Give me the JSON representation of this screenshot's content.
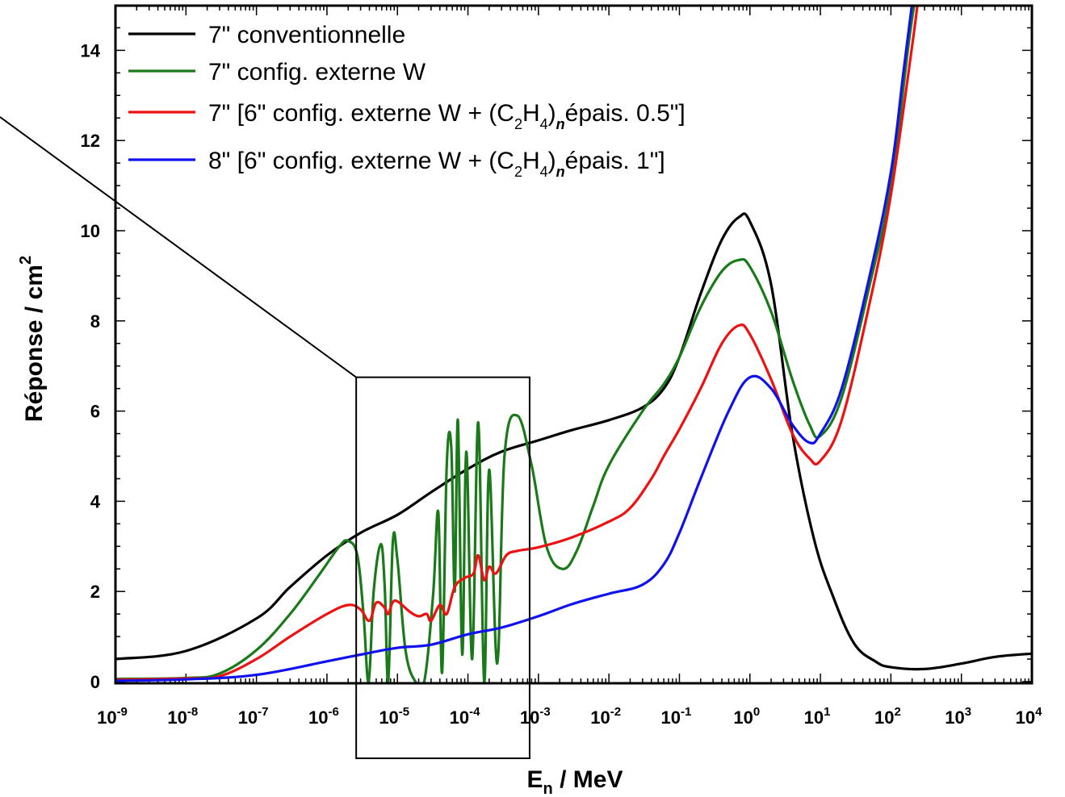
{
  "chart_data": {
    "type": "line",
    "xscale": "log",
    "xlim": [
      1e-09,
      10000.0
    ],
    "ylim": [
      0,
      15
    ],
    "xlabel_main": "E",
    "xlabel_sub": "n",
    "xlabel_rest": " / MeV",
    "ylabel_main": "Réponse / cm",
    "ylabel_sup": "2",
    "x_ticks": [
      {
        "base": "10",
        "exp": "-9",
        "value": 1e-09
      },
      {
        "base": "10",
        "exp": "-8",
        "value": 1e-08
      },
      {
        "base": "10",
        "exp": "-7",
        "value": 1e-07
      },
      {
        "base": "10",
        "exp": "-6",
        "value": 1e-06
      },
      {
        "base": "10",
        "exp": "-5",
        "value": 1e-05
      },
      {
        "base": "10",
        "exp": "-4",
        "value": 0.0001
      },
      {
        "base": "10",
        "exp": "-3",
        "value": 0.001
      },
      {
        "base": "10",
        "exp": "-2",
        "value": 0.01
      },
      {
        "base": "10",
        "exp": "-1",
        "value": 0.1
      },
      {
        "base": "10",
        "exp": "0",
        "value": 1
      },
      {
        "base": "10",
        "exp": "1",
        "value": 10
      },
      {
        "base": "10",
        "exp": "2",
        "value": 100
      },
      {
        "base": "10",
        "exp": "3",
        "value": 1000
      },
      {
        "base": "10",
        "exp": "4",
        "value": 10000
      }
    ],
    "y_ticks": [
      {
        "label": "0",
        "value": 0
      },
      {
        "label": "2",
        "value": 2
      },
      {
        "label": "4",
        "value": 4
      },
      {
        "label": "6",
        "value": 6
      },
      {
        "label": "8",
        "value": 8
      },
      {
        "label": "10",
        "value": 10
      },
      {
        "label": "12",
        "value": 12
      },
      {
        "label": "14",
        "value": 14
      }
    ],
    "legend_position": "top-left",
    "zoom_box": {
      "x_range": [
        2.6e-06,
        0.00075
      ],
      "y_range": [
        -1.7,
        6.75
      ]
    },
    "series": [
      {
        "legend_parts": [
          "7\" conventionnelle"
        ],
        "color": "#000000",
        "points": [
          [
            1e-09,
            0.5
          ],
          [
            1e-08,
            0.68
          ],
          [
            1e-07,
            1.4
          ],
          [
            3e-07,
            2.1
          ],
          [
            1e-06,
            2.8
          ],
          [
            3e-06,
            3.3
          ],
          [
            1e-05,
            3.7
          ],
          [
            3e-05,
            4.2
          ],
          [
            0.0001,
            4.72
          ],
          [
            0.0003,
            5.1
          ],
          [
            0.001,
            5.35
          ],
          [
            0.003,
            5.58
          ],
          [
            0.01,
            5.8
          ],
          [
            0.03,
            6.08
          ],
          [
            0.06,
            6.5
          ],
          [
            0.1,
            7.2
          ],
          [
            0.2,
            8.6
          ],
          [
            0.4,
            9.8
          ],
          [
            0.7,
            10.3
          ],
          [
            1,
            10.2
          ],
          [
            2,
            8.8
          ],
          [
            4,
            5.5
          ],
          [
            8,
            3.2
          ],
          [
            15,
            1.9
          ],
          [
            30,
            0.85
          ],
          [
            60,
            0.45
          ],
          [
            100,
            0.32
          ],
          [
            300,
            0.28
          ],
          [
            1000,
            0.4
          ],
          [
            3000,
            0.55
          ],
          [
            10000.0,
            0.62
          ]
        ]
      },
      {
        "legend_parts": [
          "7\" config. externe W"
        ],
        "color": "#1a7a1a",
        "points": [
          [
            1e-09,
            0.06
          ],
          [
            1e-08,
            0.08
          ],
          [
            3e-08,
            0.18
          ],
          [
            1e-07,
            0.7
          ],
          [
            3e-07,
            1.5
          ],
          [
            8e-07,
            2.4
          ],
          [
            1.5e-06,
            3.0
          ],
          [
            2e-06,
            3.12
          ],
          [
            2.7e-06,
            2.8
          ],
          [
            3.3e-06,
            1.5
          ],
          [
            3.9e-06,
            0.0
          ],
          [
            4.6e-06,
            2.0
          ],
          [
            5.8e-06,
            3.05
          ],
          [
            6.6e-06,
            2.1
          ],
          [
            7.4e-06,
            0.0
          ],
          [
            8.6e-06,
            3.1
          ],
          [
            1e-05,
            2.7
          ],
          [
            1.3e-05,
            0.7
          ],
          [
            1.8e-05,
            0.0
          ],
          [
            2.4e-05,
            0.0
          ],
          [
            3.2e-05,
            1.9
          ],
          [
            3.8e-05,
            3.75
          ],
          [
            4.3e-05,
            0.2
          ],
          [
            5e-05,
            4.8
          ],
          [
            5.8e-05,
            5.2
          ],
          [
            6.5e-05,
            2.0
          ],
          [
            7.2e-05,
            5.8
          ],
          [
            8.3e-05,
            0.6
          ],
          [
            9.5e-05,
            5.1
          ],
          [
            0.000115,
            0.5
          ],
          [
            0.00014,
            5.75
          ],
          [
            0.00017,
            0.0
          ],
          [
            0.0002,
            4.7
          ],
          [
            0.00026,
            0.4
          ],
          [
            0.00033,
            5.0
          ],
          [
            0.0005,
            5.9
          ],
          [
            0.0008,
            4.8
          ],
          [
            0.0013,
            3.0
          ],
          [
            0.0022,
            2.5
          ],
          [
            0.0035,
            2.9
          ],
          [
            0.006,
            3.9
          ],
          [
            0.01,
            4.8
          ],
          [
            0.03,
            6.0
          ],
          [
            0.06,
            6.6
          ],
          [
            0.1,
            7.2
          ],
          [
            0.2,
            8.3
          ],
          [
            0.4,
            9.1
          ],
          [
            0.7,
            9.35
          ],
          [
            1,
            9.2
          ],
          [
            2,
            8.2
          ],
          [
            4,
            6.7
          ],
          [
            7,
            5.7
          ],
          [
            10,
            5.45
          ],
          [
            20,
            6.3
          ],
          [
            50,
            8.8
          ],
          [
            100,
            11.0
          ],
          [
            180,
            14.2
          ],
          [
            230,
            15.3
          ]
        ]
      },
      {
        "legend_parts": [
          "7\" [6\" config. externe W + (C",
          "2",
          "H",
          "4",
          ")",
          "n",
          "épais. 0.5\"]"
        ],
        "color": "#ee1111",
        "points": [
          [
            1e-09,
            0.04
          ],
          [
            1e-08,
            0.07
          ],
          [
            3e-08,
            0.12
          ],
          [
            1e-07,
            0.5
          ],
          [
            3e-07,
            1.0
          ],
          [
            1e-06,
            1.5
          ],
          [
            2e-06,
            1.7
          ],
          [
            3e-06,
            1.6
          ],
          [
            4e-06,
            1.35
          ],
          [
            5e-06,
            1.75
          ],
          [
            6.5e-06,
            1.65
          ],
          [
            7.4e-06,
            1.5
          ],
          [
            8.5e-06,
            1.75
          ],
          [
            1e-05,
            1.78
          ],
          [
            1.5e-05,
            1.55
          ],
          [
            2e-05,
            1.45
          ],
          [
            2.6e-05,
            1.5
          ],
          [
            3e-05,
            1.35
          ],
          [
            4e-05,
            1.7
          ],
          [
            5e-05,
            1.5
          ],
          [
            6.5e-05,
            2.1
          ],
          [
            9e-05,
            2.3
          ],
          [
            0.00012,
            2.4
          ],
          [
            0.00014,
            2.8
          ],
          [
            0.00017,
            2.25
          ],
          [
            0.0002,
            2.55
          ],
          [
            0.00025,
            2.4
          ],
          [
            0.00035,
            2.8
          ],
          [
            0.0005,
            2.9
          ],
          [
            0.001,
            2.98
          ],
          [
            0.003,
            3.2
          ],
          [
            0.01,
            3.55
          ],
          [
            0.02,
            3.85
          ],
          [
            0.04,
            4.5
          ],
          [
            0.06,
            5.0
          ],
          [
            0.1,
            5.6
          ],
          [
            0.2,
            6.5
          ],
          [
            0.4,
            7.5
          ],
          [
            0.7,
            7.9
          ],
          [
            1,
            7.7
          ],
          [
            2,
            6.7
          ],
          [
            4,
            5.5
          ],
          [
            7,
            4.95
          ],
          [
            10,
            4.9
          ],
          [
            20,
            5.8
          ],
          [
            50,
            8.4
          ],
          [
            100,
            10.8
          ],
          [
            200,
            14.1
          ],
          [
            250,
            15.3
          ]
        ]
      },
      {
        "legend_parts": [
          "8\" [6\" config. externe W + (C",
          "2",
          "H",
          "4",
          ")",
          "n",
          "épais. 1\"]"
        ],
        "color": "#1111ee",
        "points": [
          [
            1e-09,
            0.02
          ],
          [
            1e-08,
            0.05
          ],
          [
            1e-07,
            0.15
          ],
          [
            1e-06,
            0.45
          ],
          [
            3e-06,
            0.6
          ],
          [
            1e-05,
            0.75
          ],
          [
            3e-05,
            0.82
          ],
          [
            0.0001,
            1.05
          ],
          [
            0.0003,
            1.2
          ],
          [
            0.001,
            1.45
          ],
          [
            0.003,
            1.72
          ],
          [
            0.01,
            1.95
          ],
          [
            0.03,
            2.15
          ],
          [
            0.06,
            2.6
          ],
          [
            0.1,
            3.3
          ],
          [
            0.2,
            4.5
          ],
          [
            0.5,
            6.0
          ],
          [
            1,
            6.75
          ],
          [
            2,
            6.5
          ],
          [
            4,
            5.7
          ],
          [
            7,
            5.3
          ],
          [
            10,
            5.5
          ],
          [
            20,
            6.5
          ],
          [
            50,
            9.0
          ],
          [
            100,
            11.3
          ],
          [
            150,
            13.5
          ],
          [
            210,
            15.3
          ]
        ]
      }
    ]
  }
}
